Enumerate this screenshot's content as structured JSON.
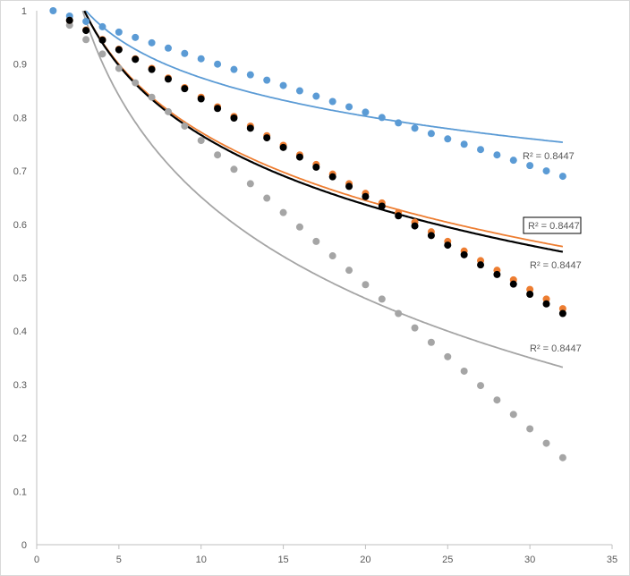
{
  "chart_data": {
    "type": "scatter",
    "title": "",
    "xlabel": "",
    "ylabel": "",
    "xlim": [
      0,
      35
    ],
    "ylim": [
      0,
      1
    ],
    "x_ticks": [
      "0",
      "5",
      "10",
      "15",
      "20",
      "25",
      "30",
      "35"
    ],
    "y_ticks": [
      "0",
      "0.1",
      "0.2",
      "0.3",
      "0.4",
      "0.5",
      "0.6",
      "0.7",
      "0.8",
      "0.9",
      "1"
    ],
    "grid": false,
    "legend": "none",
    "series": [
      {
        "name": "blue",
        "color": "#5b9bd5",
        "x": [
          1,
          2,
          3,
          4,
          5,
          6,
          7,
          8,
          9,
          10,
          11,
          12,
          13,
          14,
          15,
          16,
          17,
          18,
          19,
          20,
          21,
          22,
          23,
          24,
          25,
          26,
          27,
          28,
          29,
          30,
          31,
          32
        ],
        "y": [
          1,
          0.99,
          0.98,
          0.97,
          0.96,
          0.95,
          0.94,
          0.93,
          0.92,
          0.91,
          0.9,
          0.89,
          0.88,
          0.87,
          0.86,
          0.85,
          0.84,
          0.83,
          0.82,
          0.81,
          0.8,
          0.79,
          0.78,
          0.77,
          0.76,
          0.75,
          0.74,
          0.73,
          0.72,
          0.71,
          0.7,
          0.69
        ],
        "trendline": {
          "type": "log",
          "a": 1.114,
          "b": -0.104,
          "r2_label": "R² = 0.8447",
          "boxed": false
        }
      },
      {
        "name": "gray",
        "color": "#a5a5a5",
        "x": [
          2,
          3,
          4,
          5,
          6,
          7,
          8,
          9,
          10,
          11,
          12,
          13,
          14,
          15,
          16,
          17,
          18,
          19,
          20,
          21,
          22,
          23,
          24,
          25,
          26,
          27,
          28,
          29,
          30,
          31,
          32
        ],
        "y": [
          0.973,
          0.946,
          0.919,
          0.892,
          0.865,
          0.838,
          0.811,
          0.784,
          0.757,
          0.73,
          0.703,
          0.676,
          0.649,
          0.622,
          0.595,
          0.568,
          0.541,
          0.514,
          0.487,
          0.46,
          0.433,
          0.406,
          0.379,
          0.352,
          0.325,
          0.298,
          0.271,
          0.244,
          0.217,
          0.19,
          0.163
        ],
        "trendline": {
          "type": "log",
          "a": 1.282,
          "b": -0.274,
          "r2_label": "R² = 0.8447",
          "boxed": false
        }
      },
      {
        "name": "orange",
        "color": "#ed7d31",
        "x": [
          2,
          3,
          4,
          5,
          6,
          7,
          8,
          9,
          10,
          11,
          12,
          13,
          14,
          15,
          16,
          17,
          18,
          19,
          20,
          21,
          22,
          23,
          24,
          25,
          26,
          27,
          28,
          29,
          30,
          31,
          32
        ],
        "y": [
          0.982,
          0.964,
          0.946,
          0.928,
          0.91,
          0.892,
          0.874,
          0.856,
          0.838,
          0.82,
          0.802,
          0.784,
          0.766,
          0.748,
          0.73,
          0.712,
          0.694,
          0.676,
          0.658,
          0.64,
          0.622,
          0.604,
          0.586,
          0.568,
          0.55,
          0.532,
          0.514,
          0.496,
          0.478,
          0.46,
          0.442
        ],
        "trendline": {
          "type": "log",
          "a": 1.196,
          "b": -0.184,
          "r2_label": "R² = 0.8447",
          "boxed": true
        }
      },
      {
        "name": "black",
        "color": "#000000",
        "x": [
          2,
          3,
          4,
          5,
          6,
          7,
          8,
          9,
          10,
          11,
          12,
          13,
          14,
          15,
          16,
          17,
          18,
          19,
          20,
          21,
          22,
          23,
          24,
          25,
          26,
          27,
          28,
          29,
          30,
          31,
          32
        ],
        "y": [
          0.982,
          0.963,
          0.945,
          0.927,
          0.909,
          0.89,
          0.872,
          0.854,
          0.835,
          0.817,
          0.799,
          0.78,
          0.762,
          0.744,
          0.726,
          0.707,
          0.689,
          0.671,
          0.652,
          0.634,
          0.616,
          0.597,
          0.579,
          0.561,
          0.543,
          0.524,
          0.506,
          0.488,
          0.469,
          0.451,
          0.433
        ],
        "trendline": {
          "type": "log",
          "a": 1.2,
          "b": -0.188,
          "r2_label": "R² = 0.8447",
          "boxed": false
        }
      }
    ]
  }
}
